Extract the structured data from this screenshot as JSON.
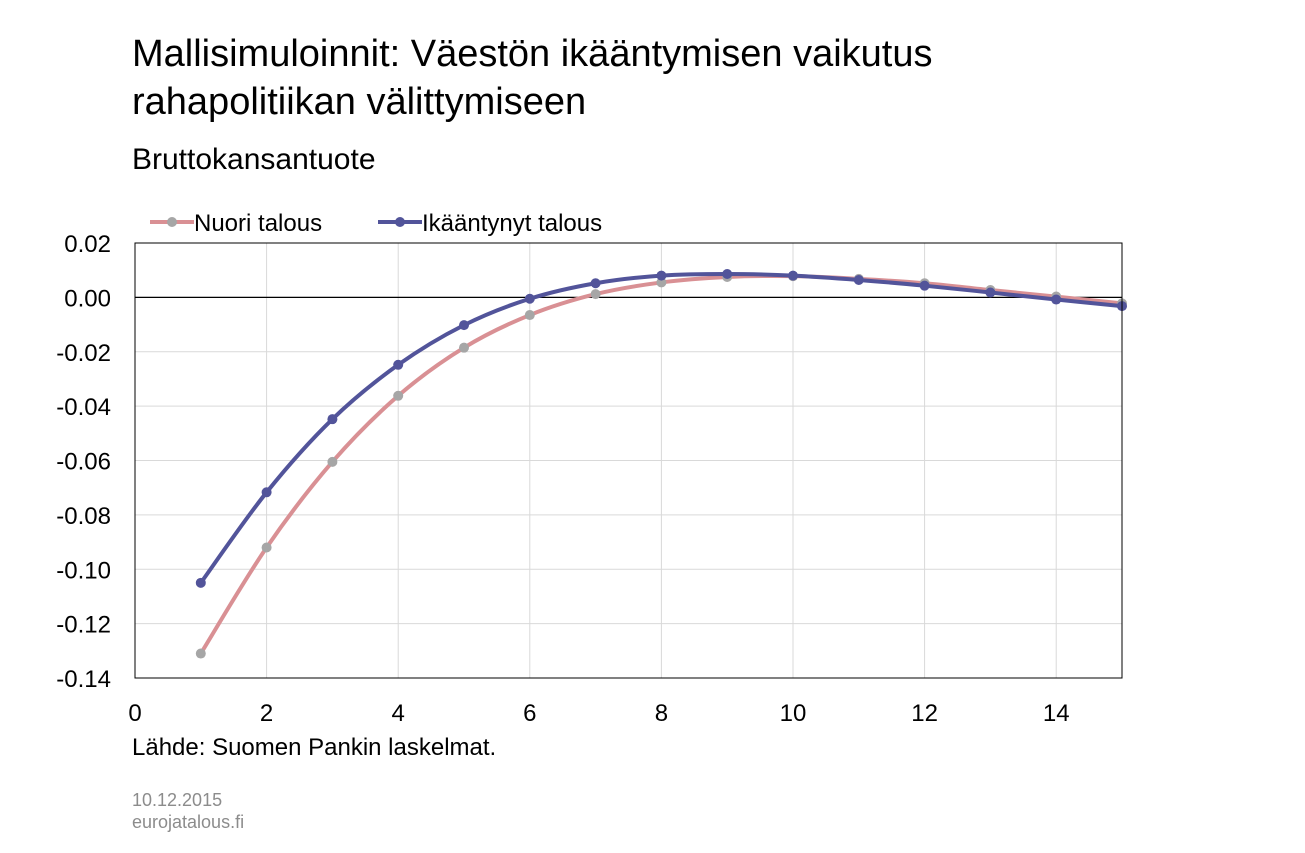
{
  "header": {
    "title": "Mallisimuloinnit: Väestön ikääntymisen vaikutus rahapolitiikan välittymiseen",
    "subtitle": "Bruttokansantuote"
  },
  "footer": {
    "source": "Lähde: Suomen Pankin laskelmat.",
    "date": "10.12.2015",
    "site": "eurojatalous.fi"
  },
  "chart_data": {
    "type": "line",
    "title": "Mallisimuloinnit: Väestön ikääntymisen vaikutus rahapolitiikan välittymiseen",
    "subtitle": "Bruttokansantuote",
    "xlabel": "",
    "ylabel": "",
    "xlim": [
      0,
      15
    ],
    "ylim": [
      -0.14,
      0.02
    ],
    "x_ticks": [
      0,
      2,
      4,
      6,
      8,
      10,
      12,
      14
    ],
    "x_tick_labels": [
      "0",
      "2",
      "4",
      "6",
      "8",
      "10",
      "12",
      "14"
    ],
    "y_ticks": [
      0.02,
      0.0,
      -0.02,
      -0.04,
      -0.06,
      -0.08,
      -0.1,
      -0.12,
      -0.14
    ],
    "y_tick_labels": [
      "0.02",
      "0.00",
      "-0.02",
      "-0.04",
      "-0.06",
      "-0.08",
      "-0.10",
      "-0.12",
      "-0.14"
    ],
    "grid": true,
    "smooth": true,
    "legend_position": "top-left",
    "x": [
      1,
      2,
      3,
      4,
      5,
      6,
      7,
      8,
      9,
      10,
      11,
      12,
      13,
      14,
      15
    ],
    "series": [
      {
        "name": "Nuori talous",
        "color": "#d99094",
        "marker_color": "#a6a6a6",
        "values": [
          -0.131,
          -0.092,
          -0.0605,
          -0.0362,
          -0.0185,
          -0.0065,
          0.0012,
          0.0055,
          0.0075,
          0.0078,
          0.0068,
          0.0052,
          0.0027,
          0.0003,
          -0.0022
        ]
      },
      {
        "name": "Ikääntynyt talous",
        "color": "#52549a",
        "marker_color": "#52549a",
        "values": [
          -0.105,
          -0.0717,
          -0.0448,
          -0.0248,
          -0.0102,
          -0.0005,
          0.0052,
          0.008,
          0.0086,
          0.008,
          0.0064,
          0.0043,
          0.0018,
          -0.0008,
          -0.0032
        ]
      }
    ]
  }
}
